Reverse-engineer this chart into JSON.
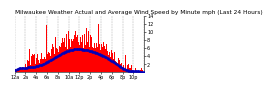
{
  "title": "Milwaukee Weather Actual and Average Wind Speed by Minute mph (Last 24 Hours)",
  "bar_color": "#ff0000",
  "dot_color": "#0000bb",
  "background_color": "#ffffff",
  "grid_color": "#aaaaaa",
  "ylim": [
    0,
    14
  ],
  "yticks": [
    2,
    4,
    6,
    8,
    10,
    12,
    14
  ],
  "n_points": 1440,
  "seed": 17,
  "title_fontsize": 4.2,
  "tick_fontsize": 3.5,
  "n_vgrid": 12
}
